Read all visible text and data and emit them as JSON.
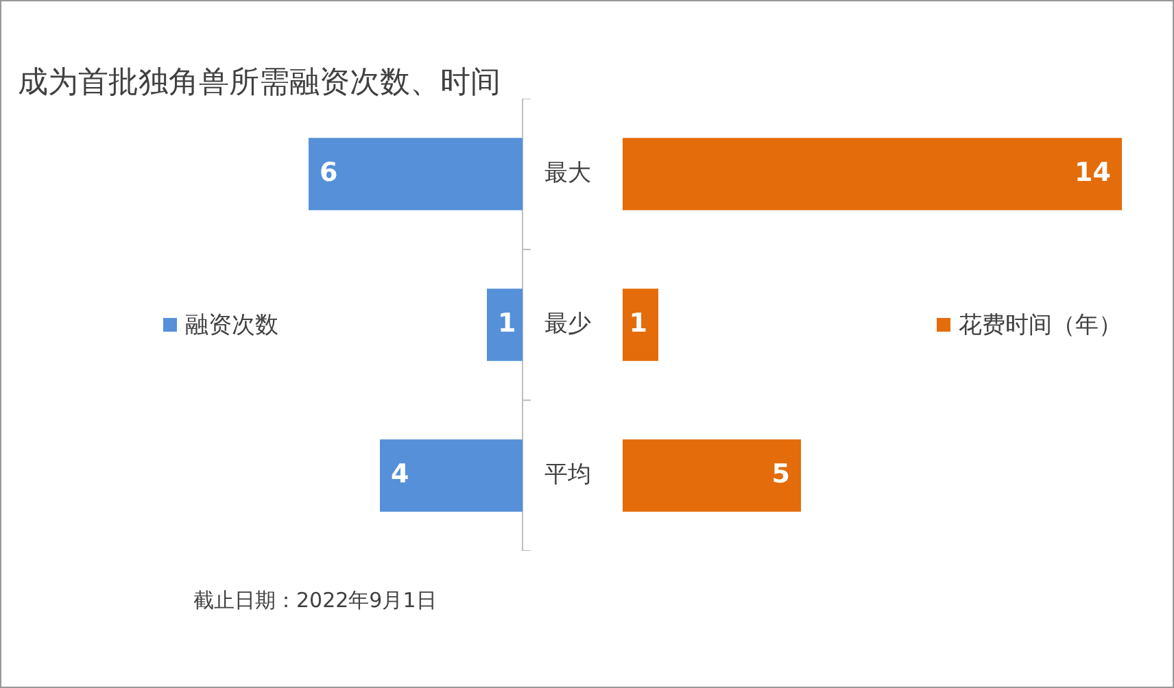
{
  "chart_data": [
    {
      "type": "bar",
      "orientation": "horizontal",
      "title": "成为首批独角兽所需融资次数、时间",
      "categories": [
        "最大",
        "最少",
        "平均"
      ],
      "series": [
        {
          "name": "融资次数",
          "color": "#5590d9",
          "values": [
            6,
            1,
            4
          ]
        }
      ],
      "data_labels": true,
      "legend": "left",
      "tick_labels": "y",
      "annotations": [
        "截止日期：2022年9月1日"
      ]
    },
    {
      "type": "bar",
      "orientation": "horizontal",
      "categories": [
        null,
        null,
        null
      ],
      "series": [
        {
          "name": "花费时间（年）",
          "color": "#e46c0a",
          "values": [
            14,
            1,
            5
          ]
        }
      ],
      "data_labels": true,
      "legend": "right",
      "tick_labels": false
    }
  ]
}
